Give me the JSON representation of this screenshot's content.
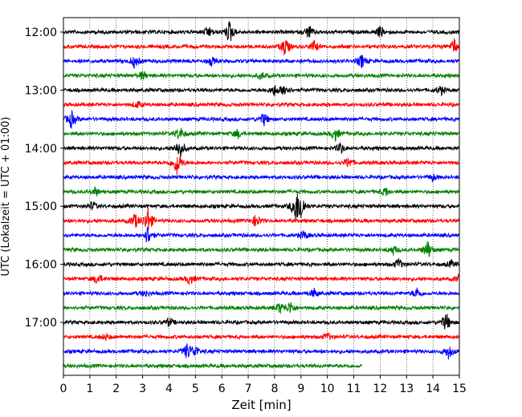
{
  "chart_data": {
    "type": "line",
    "subtype": "helicorder",
    "xlabel": "Zeit  [min]",
    "ylabel": "UTC (Lokalzeit = UTC + 01:00)",
    "xlim": [
      0,
      15
    ],
    "x_ticks": [
      "0",
      "1",
      "2",
      "3",
      "4",
      "5",
      "6",
      "7",
      "8",
      "9",
      "10",
      "11",
      "12",
      "13",
      "14",
      "15"
    ],
    "y_ticks": [
      "12:00",
      "13:00",
      "14:00",
      "15:00",
      "16:00",
      "17:00"
    ],
    "trace_interval_min": 15,
    "trace_colors": [
      "#000000",
      "#ff0000",
      "#0000ff",
      "#008000"
    ],
    "grid": "vertical dotted lines at each minute",
    "traces": [
      {
        "start": "12:00",
        "color": "#000000",
        "end_min": 15
      },
      {
        "start": "12:15",
        "color": "#ff0000",
        "end_min": 15
      },
      {
        "start": "12:30",
        "color": "#0000ff",
        "end_min": 15
      },
      {
        "start": "12:45",
        "color": "#008000",
        "end_min": 15
      },
      {
        "start": "13:00",
        "color": "#000000",
        "end_min": 15
      },
      {
        "start": "13:15",
        "color": "#ff0000",
        "end_min": 15
      },
      {
        "start": "13:30",
        "color": "#0000ff",
        "end_min": 15
      },
      {
        "start": "13:45",
        "color": "#008000",
        "end_min": 15
      },
      {
        "start": "14:00",
        "color": "#000000",
        "end_min": 15
      },
      {
        "start": "14:15",
        "color": "#ff0000",
        "end_min": 15
      },
      {
        "start": "14:30",
        "color": "#0000ff",
        "end_min": 15
      },
      {
        "start": "14:45",
        "color": "#008000",
        "end_min": 15
      },
      {
        "start": "15:00",
        "color": "#000000",
        "end_min": 15
      },
      {
        "start": "15:15",
        "color": "#ff0000",
        "end_min": 15
      },
      {
        "start": "15:30",
        "color": "#0000ff",
        "end_min": 15
      },
      {
        "start": "15:45",
        "color": "#008000",
        "end_min": 15
      },
      {
        "start": "16:00",
        "color": "#000000",
        "end_min": 15
      },
      {
        "start": "16:15",
        "color": "#ff0000",
        "end_min": 15
      },
      {
        "start": "16:30",
        "color": "#0000ff",
        "end_min": 15
      },
      {
        "start": "16:45",
        "color": "#008000",
        "end_min": 15
      },
      {
        "start": "17:00",
        "color": "#000000",
        "end_min": 15
      },
      {
        "start": "17:15",
        "color": "#ff0000",
        "end_min": 15
      },
      {
        "start": "17:30",
        "color": "#0000ff",
        "end_min": 15
      },
      {
        "start": "17:45",
        "color": "#008000",
        "end_min": 11.3
      }
    ],
    "events": [
      {
        "trace": 0,
        "min": 5.5,
        "amp": 0.5
      },
      {
        "trace": 0,
        "min": 6.3,
        "amp": 1.1
      },
      {
        "trace": 0,
        "min": 9.3,
        "amp": 0.6
      },
      {
        "trace": 0,
        "min": 12.0,
        "amp": 0.5
      },
      {
        "trace": 1,
        "min": 8.4,
        "amp": 0.9
      },
      {
        "trace": 1,
        "min": 9.5,
        "amp": 0.5
      },
      {
        "trace": 1,
        "min": 14.8,
        "amp": 0.7
      },
      {
        "trace": 2,
        "min": 2.7,
        "amp": 0.6
      },
      {
        "trace": 2,
        "min": 5.6,
        "amp": 0.4
      },
      {
        "trace": 2,
        "min": 11.3,
        "amp": 0.6
      },
      {
        "trace": 3,
        "min": 3.0,
        "amp": 0.4
      },
      {
        "trace": 3,
        "min": 7.5,
        "amp": 0.3
      },
      {
        "trace": 4,
        "min": 8.0,
        "amp": 0.5
      },
      {
        "trace": 4,
        "min": 8.4,
        "amp": 0.6
      },
      {
        "trace": 4,
        "min": 14.3,
        "amp": 0.4
      },
      {
        "trace": 5,
        "min": 2.8,
        "amp": 0.3
      },
      {
        "trace": 6,
        "min": 0.3,
        "amp": 0.8
      },
      {
        "trace": 6,
        "min": 7.6,
        "amp": 0.6
      },
      {
        "trace": 7,
        "min": 4.4,
        "amp": 0.7
      },
      {
        "trace": 7,
        "min": 6.6,
        "amp": 0.4
      },
      {
        "trace": 7,
        "min": 10.3,
        "amp": 0.6
      },
      {
        "trace": 8,
        "min": 4.4,
        "amp": 1.0
      },
      {
        "trace": 8,
        "min": 10.5,
        "amp": 0.5
      },
      {
        "trace": 9,
        "min": 4.3,
        "amp": 1.2
      },
      {
        "trace": 9,
        "min": 10.8,
        "amp": 0.5
      },
      {
        "trace": 10,
        "min": 14.0,
        "amp": 0.3
      },
      {
        "trace": 11,
        "min": 1.2,
        "amp": 0.4
      },
      {
        "trace": 11,
        "min": 12.2,
        "amp": 0.4
      },
      {
        "trace": 12,
        "min": 8.8,
        "amp": 1.4
      },
      {
        "trace": 12,
        "min": 9.0,
        "amp": 1.2
      },
      {
        "trace": 12,
        "min": 1.1,
        "amp": 0.4
      },
      {
        "trace": 13,
        "min": 2.7,
        "amp": 0.7
      },
      {
        "trace": 13,
        "min": 3.2,
        "amp": 1.3
      },
      {
        "trace": 13,
        "min": 7.3,
        "amp": 0.6
      },
      {
        "trace": 14,
        "min": 3.2,
        "amp": 0.9
      },
      {
        "trace": 14,
        "min": 9.1,
        "amp": 0.4
      },
      {
        "trace": 15,
        "min": 13.8,
        "amp": 0.9
      },
      {
        "trace": 15,
        "min": 12.5,
        "amp": 0.4
      },
      {
        "trace": 16,
        "min": 12.7,
        "amp": 0.5
      },
      {
        "trace": 16,
        "min": 14.7,
        "amp": 0.3
      },
      {
        "trace": 17,
        "min": 1.3,
        "amp": 0.5
      },
      {
        "trace": 17,
        "min": 4.8,
        "amp": 0.5
      },
      {
        "trace": 17,
        "min": 15.0,
        "amp": 0.5
      },
      {
        "trace": 18,
        "min": 3.1,
        "amp": 0.3
      },
      {
        "trace": 18,
        "min": 9.5,
        "amp": 0.4
      },
      {
        "trace": 18,
        "min": 13.4,
        "amp": 0.5
      },
      {
        "trace": 19,
        "min": 8.2,
        "amp": 0.5
      },
      {
        "trace": 19,
        "min": 8.6,
        "amp": 0.6
      },
      {
        "trace": 20,
        "min": 4.0,
        "amp": 0.4
      },
      {
        "trace": 20,
        "min": 14.5,
        "amp": 0.9
      },
      {
        "trace": 21,
        "min": 1.6,
        "amp": 0.3
      },
      {
        "trace": 21,
        "min": 10.0,
        "amp": 0.3
      },
      {
        "trace": 22,
        "min": 4.7,
        "amp": 0.8
      },
      {
        "trace": 22,
        "min": 5.0,
        "amp": 0.5
      },
      {
        "trace": 22,
        "min": 14.6,
        "amp": 0.7
      }
    ]
  }
}
